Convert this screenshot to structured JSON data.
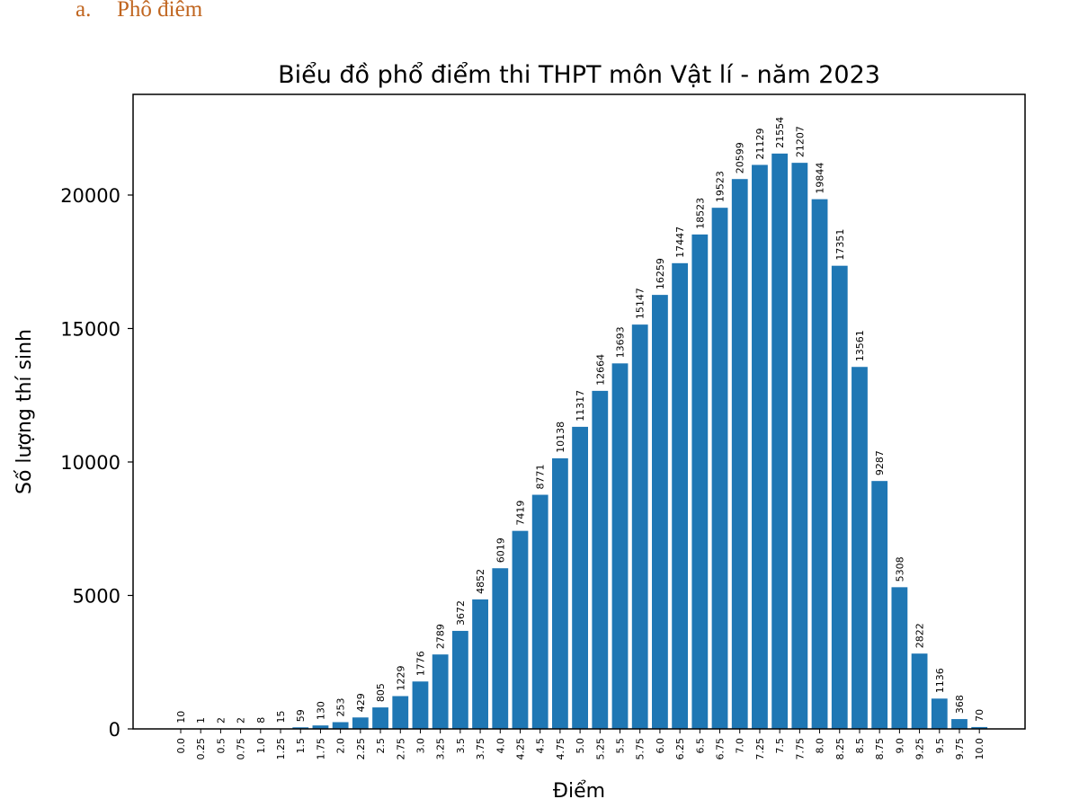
{
  "heading": {
    "marker": "a.",
    "text": "Phô điêm"
  },
  "chart_data": {
    "type": "bar",
    "title": "Biểu đồ phổ điểm thi THPT môn Vật lí - năm 2023",
    "xlabel": "Điểm",
    "ylabel": "Số lượng thí sinh",
    "ylim": [
      0,
      23500
    ],
    "yticks": [
      0,
      5000,
      10000,
      15000,
      20000
    ],
    "grid": false,
    "bar_color": "#1f77b4",
    "categories": [
      "0.0",
      "0.25",
      "0.5",
      "0.75",
      "1.0",
      "1.25",
      "1.5",
      "1.75",
      "2.0",
      "2.25",
      "2.5",
      "2.75",
      "3.0",
      "3.25",
      "3.5",
      "3.75",
      "4.0",
      "4.25",
      "4.5",
      "4.75",
      "5.0",
      "5.25",
      "5.5",
      "5.75",
      "6.0",
      "6.25",
      "6.5",
      "6.75",
      "7.0",
      "7.25",
      "7.5",
      "7.75",
      "8.0",
      "8.25",
      "8.5",
      "8.75",
      "9.0",
      "9.25",
      "9.5",
      "9.75",
      "10.0"
    ],
    "values": [
      10,
      1,
      2,
      2,
      8,
      15,
      59,
      130,
      253,
      429,
      805,
      1229,
      1776,
      2789,
      3672,
      4852,
      6019,
      7419,
      8771,
      10138,
      11317,
      12664,
      13693,
      15147,
      16259,
      17447,
      18523,
      19523,
      20599,
      21129,
      21554,
      21207,
      19844,
      17351,
      13561,
      9287,
      5308,
      2822,
      1136,
      368,
      70
    ]
  }
}
